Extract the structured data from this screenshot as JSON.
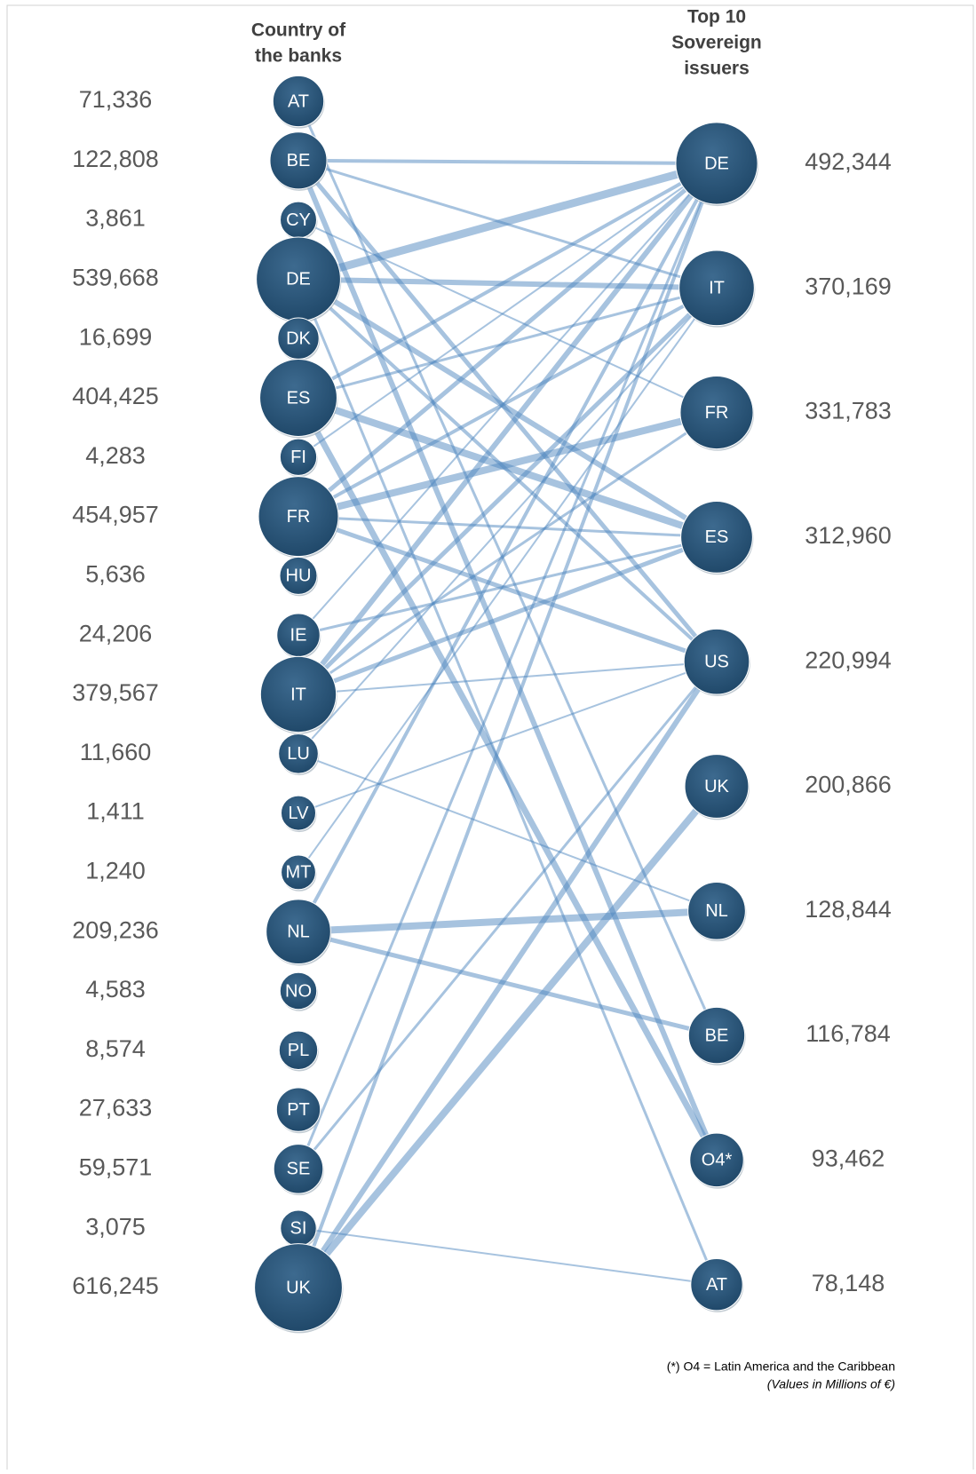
{
  "header": {
    "left_title": [
      "Country of",
      "the banks"
    ],
    "right_title": [
      "Top 10",
      "Sovereign",
      "issuers"
    ]
  },
  "left": {
    "nodes": [
      {
        "label": "AT",
        "value": "71,336"
      },
      {
        "label": "BE",
        "value": "122,808"
      },
      {
        "label": "CY",
        "value": "3,861"
      },
      {
        "label": "DE",
        "value": "539,668"
      },
      {
        "label": "DK",
        "value": "16,699"
      },
      {
        "label": "ES",
        "value": "404,425"
      },
      {
        "label": "FI",
        "value": "4,283"
      },
      {
        "label": "FR",
        "value": "454,957"
      },
      {
        "label": "HU",
        "value": "5,636"
      },
      {
        "label": "IE",
        "value": "24,206"
      },
      {
        "label": "IT",
        "value": "379,567"
      },
      {
        "label": "LU",
        "value": "11,660"
      },
      {
        "label": "LV",
        "value": "1,411"
      },
      {
        "label": "MT",
        "value": "1,240"
      },
      {
        "label": "NL",
        "value": "209,236"
      },
      {
        "label": "NO",
        "value": "4,583"
      },
      {
        "label": "PL",
        "value": "8,574"
      },
      {
        "label": "PT",
        "value": "27,633"
      },
      {
        "label": "SE",
        "value": "59,571"
      },
      {
        "label": "SI",
        "value": "3,075"
      },
      {
        "label": "UK",
        "value": "616,245"
      }
    ]
  },
  "right": {
    "nodes": [
      {
        "label": "DE",
        "value": "492,344"
      },
      {
        "label": "IT",
        "value": "370,169"
      },
      {
        "label": "FR",
        "value": "331,783"
      },
      {
        "label": "ES",
        "value": "312,960"
      },
      {
        "label": "US",
        "value": "220,994"
      },
      {
        "label": "UK",
        "value": "200,866"
      },
      {
        "label": "NL",
        "value": "128,844"
      },
      {
        "label": "BE",
        "value": "116,784"
      },
      {
        "label": "O4*",
        "value": "93,462"
      },
      {
        "label": "AT",
        "value": "78,148"
      }
    ]
  },
  "footnote": {
    "lines": [
      "(*) O4 = Latin America and the Caribbean",
      "(Values in Millions of €)"
    ]
  }
}
